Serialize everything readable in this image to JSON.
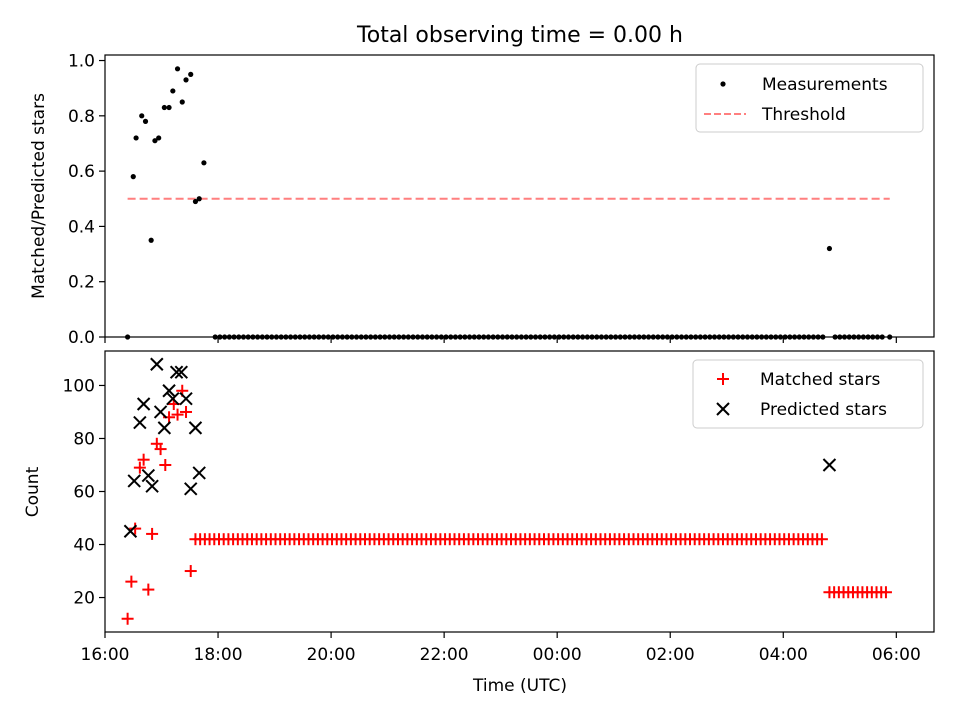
{
  "title": "Total observing time = 0.00 h",
  "colors": {
    "measurements": "#000000",
    "threshold": "#ff7f7f",
    "matched": "#ff0000",
    "predicted": "#000000"
  },
  "chart_data": [
    {
      "type": "scatter",
      "ylabel": "Matched/Predicted stars",
      "xlim": [
        "16:00",
        "06:40"
      ],
      "ylim": [
        0,
        1.02
      ],
      "yticks": [
        0.0,
        0.2,
        0.4,
        0.6,
        0.8,
        1.0
      ],
      "yticklabels": [
        "0.0",
        "0.2",
        "0.4",
        "0.6",
        "0.8",
        "1.0"
      ],
      "grid": false,
      "legend_position": "top-right",
      "series": [
        {
          "name": "Measurements",
          "marker": "dot",
          "points": [
            [
              "16:24",
              0.0
            ],
            [
              "16:30",
              0.58
            ],
            [
              "16:33",
              0.72
            ],
            [
              "16:39",
              0.8
            ],
            [
              "16:43",
              0.78
            ],
            [
              "16:49",
              0.35
            ],
            [
              "16:53",
              0.71
            ],
            [
              "16:57",
              0.72
            ],
            [
              "17:03",
              0.83
            ],
            [
              "17:08",
              0.83
            ],
            [
              "17:12",
              0.89
            ],
            [
              "17:17",
              0.97
            ],
            [
              "17:22",
              0.85
            ],
            [
              "17:26",
              0.93
            ],
            [
              "17:31",
              0.95
            ],
            [
              "17:36",
              0.49
            ],
            [
              "17:40",
              0.5
            ],
            [
              "17:45",
              0.63
            ],
            [
              "04:49",
              0.32
            ],
            [
              "05:53",
              0.0
            ]
          ],
          "constant_segments": [
            {
              "from": "17:57",
              "to": "04:45",
              "step_minutes": 5,
              "y": 0.0
            },
            {
              "from": "04:55",
              "to": "05:45",
              "step_minutes": 5,
              "y": 0.0
            }
          ]
        },
        {
          "name": "Threshold",
          "marker": "dashed-line",
          "line": [
            [
              "16:24",
              0.5
            ],
            [
              "05:53",
              0.5
            ]
          ]
        }
      ]
    },
    {
      "type": "scatter",
      "ylabel": "Count",
      "xlabel": "Time (UTC)",
      "xlim": [
        "16:00",
        "06:40"
      ],
      "ylim": [
        7,
        113
      ],
      "yticks": [
        20,
        40,
        60,
        80,
        100
      ],
      "xticks": [
        "16:00",
        "18:00",
        "20:00",
        "22:00",
        "00:00",
        "02:00",
        "04:00",
        "06:00"
      ],
      "grid": false,
      "legend_position": "top-right",
      "series": [
        {
          "name": "Matched stars",
          "marker": "plus",
          "points": [
            [
              "16:24",
              12
            ],
            [
              "16:28",
              26
            ],
            [
              "16:32",
              46
            ],
            [
              "16:37",
              69
            ],
            [
              "16:41",
              72
            ],
            [
              "16:46",
              23
            ],
            [
              "16:50",
              44
            ],
            [
              "16:55",
              78
            ],
            [
              "16:59",
              76
            ],
            [
              "17:04",
              70
            ],
            [
              "17:08",
              88
            ],
            [
              "17:13",
              93
            ],
            [
              "17:17",
              89
            ],
            [
              "17:22",
              98
            ],
            [
              "17:26",
              90
            ],
            [
              "17:31",
              30
            ]
          ],
          "constant_segments": [
            {
              "from": "17:36",
              "to": "04:45",
              "step_minutes": 5,
              "y": 42
            },
            {
              "from": "04:49",
              "to": "05:53",
              "step_minutes": 5,
              "y": 22
            }
          ]
        },
        {
          "name": "Predicted stars",
          "marker": "x",
          "points": [
            [
              "16:27",
              45
            ],
            [
              "16:31",
              64
            ],
            [
              "16:37",
              86
            ],
            [
              "16:41",
              93
            ],
            [
              "16:46",
              66
            ],
            [
              "16:50",
              62
            ],
            [
              "16:55",
              108
            ],
            [
              "16:59",
              90
            ],
            [
              "17:03",
              84
            ],
            [
              "17:08",
              98
            ],
            [
              "17:12",
              95
            ],
            [
              "17:16",
              105
            ],
            [
              "17:21",
              105
            ],
            [
              "17:26",
              95
            ],
            [
              "17:31",
              61
            ],
            [
              "17:36",
              84
            ],
            [
              "17:40",
              67
            ],
            [
              "04:49",
              70
            ]
          ]
        }
      ]
    }
  ]
}
